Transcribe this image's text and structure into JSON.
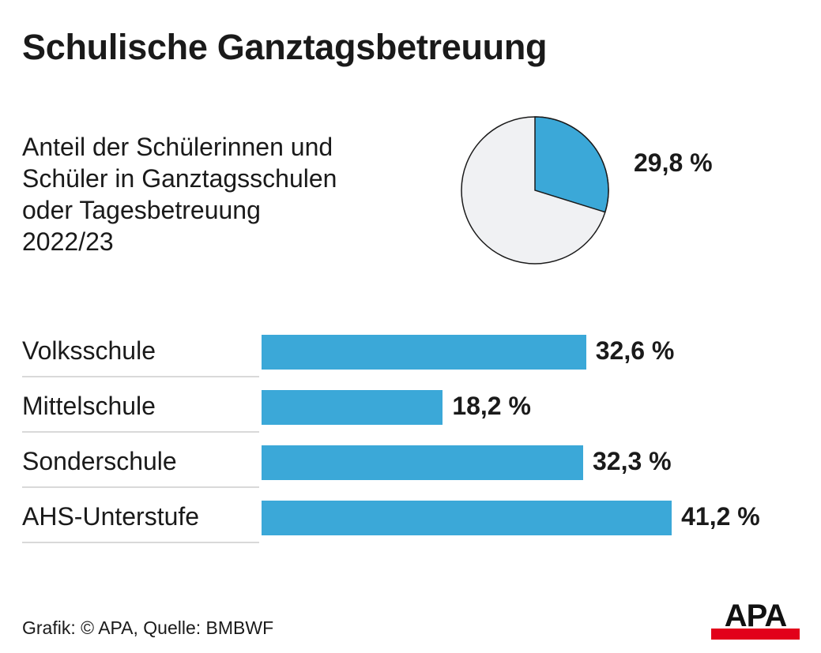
{
  "header": {
    "title": "Schulische Ganztagsbetreuung",
    "subtitle_lines": [
      "Anteil der Schülerinnen und",
      "Schüler in Ganztagsschulen",
      "oder Tagesbetreuung",
      "2022/23"
    ]
  },
  "footer": {
    "credit": "Grafik: © APA, Quelle: BMBWF"
  },
  "logo": {
    "text": "APA"
  },
  "colors": {
    "bar": "#3ba8d8",
    "pie_slice": "#3ba8d8",
    "pie_rest": "#f0f1f3",
    "pie_stroke": "#1a1a1a",
    "logo_red": "#e2001a"
  },
  "chart_data": [
    {
      "type": "pie",
      "title": "Schulische Ganztagsbetreuung",
      "subtitle": "Anteil der Schülerinnen und Schüler in Ganztagsschulen oder Tagesbetreuung 2022/23",
      "slices": [
        {
          "value": 29.8,
          "label": "29,8 %"
        },
        {
          "value": 70.2,
          "label": ""
        }
      ]
    },
    {
      "type": "bar",
      "orientation": "horizontal",
      "categories": [
        "Volksschule",
        "Mittelschule",
        "Sonderschule",
        "AHS-Unterstufe"
      ],
      "values": [
        32.6,
        18.2,
        32.3,
        41.2
      ],
      "value_labels": [
        "32,6 %",
        "18,2 %",
        "32,3 %",
        "41,2 %"
      ],
      "xlim": [
        0,
        100
      ],
      "grid": false,
      "legend": "none"
    }
  ]
}
